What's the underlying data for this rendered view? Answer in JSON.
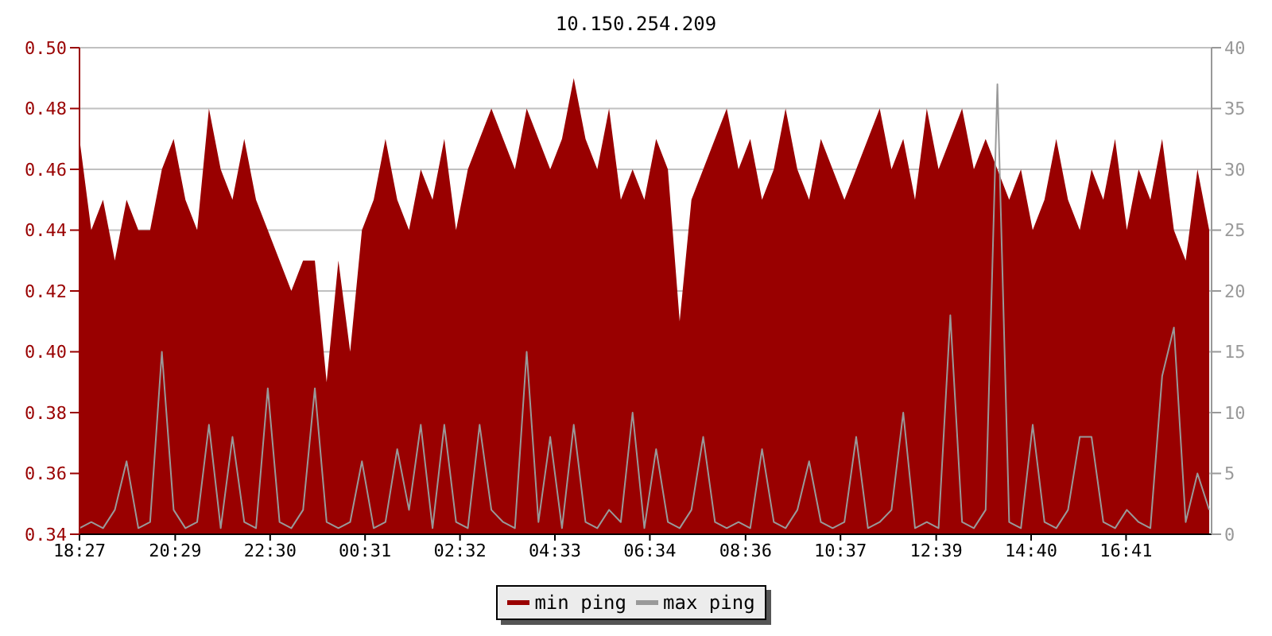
{
  "chart_data": {
    "type": "area",
    "title": "10.150.254.209",
    "x": [
      "--01-01T18:27",
      "--01-01T18:42",
      "--01-01T18:57",
      "--01-01T19:12",
      "--01-01T19:27",
      "--01-01T19:42",
      "--01-01T19:57",
      "--01-01T20:12",
      "--01-01T20:27",
      "--01-01T20:42",
      "--01-01T20:57",
      "--01-01T21:12",
      "--01-01T21:27",
      "--01-01T21:42",
      "--01-01T21:57",
      "--01-01T22:12",
      "--01-01T22:27",
      "--01-01T22:42",
      "--01-01T22:57",
      "--01-01T23:12",
      "--01-01T23:27",
      "--01-01T23:42",
      "--01-01T23:57",
      "--01-02T00:12",
      "--01-02T00:27",
      "--01-02T00:42",
      "--01-02T00:57",
      "--01-02T01:12",
      "--01-02T01:27",
      "--01-02T01:42",
      "--01-02T01:57",
      "--01-02T02:12",
      "--01-02T02:27",
      "--01-02T02:42",
      "--01-02T02:57",
      "--01-02T03:12",
      "--01-02T03:27",
      "--01-02T03:42",
      "--01-02T03:57",
      "--01-02T04:12",
      "--01-02T04:27",
      "--01-02T04:42",
      "--01-02T04:57",
      "--01-02T05:12",
      "--01-02T05:27",
      "--01-02T05:42",
      "--01-02T05:57",
      "--01-02T06:12",
      "--01-02T06:27",
      "--01-02T06:42",
      "--01-02T06:57",
      "--01-02T07:12",
      "--01-02T07:27",
      "--01-02T07:42",
      "--01-02T07:57",
      "--01-02T08:12",
      "--01-02T08:27",
      "--01-02T08:42",
      "--01-02T08:57",
      "--01-02T09:12",
      "--01-02T09:27",
      "--01-02T09:42",
      "--01-02T09:57",
      "--01-02T10:12",
      "--01-02T10:27",
      "--01-02T10:42",
      "--01-02T10:57",
      "--01-02T11:12",
      "--01-02T11:27",
      "--01-02T11:42",
      "--01-02T11:57",
      "--01-02T12:12",
      "--01-02T12:27",
      "--01-02T12:42",
      "--01-02T12:57",
      "--01-02T13:12",
      "--01-02T13:27",
      "--01-02T13:42",
      "--01-02T13:57",
      "--01-02T14:12",
      "--01-02T14:27",
      "--01-02T14:42",
      "--01-02T14:57",
      "--01-02T15:12",
      "--01-02T15:27",
      "--01-02T15:42",
      "--01-02T15:57",
      "--01-02T16:12",
      "--01-02T16:27",
      "--01-02T16:42",
      "--01-02T16:57",
      "--01-02T17:12",
      "--01-02T17:27",
      "--01-02T17:42",
      "--01-02T17:57",
      "--01-02T18:12",
      "--01-02T18:27"
    ],
    "series": [
      {
        "name": "min ping",
        "color": "#990000",
        "values": [
          0.47,
          0.44,
          0.45,
          0.43,
          0.45,
          0.44,
          0.44,
          0.46,
          0.47,
          0.45,
          0.44,
          0.48,
          0.46,
          0.45,
          0.47,
          0.45,
          0.44,
          0.43,
          0.42,
          0.43,
          0.43,
          0.39,
          0.43,
          0.4,
          0.44,
          0.45,
          0.47,
          0.45,
          0.44,
          0.46,
          0.45,
          0.47,
          0.44,
          0.46,
          0.47,
          0.48,
          0.47,
          0.46,
          0.48,
          0.47,
          0.46,
          0.47,
          0.49,
          0.47,
          0.46,
          0.48,
          0.45,
          0.46,
          0.45,
          0.47,
          0.46,
          0.41,
          0.45,
          0.46,
          0.47,
          0.48,
          0.46,
          0.47,
          0.45,
          0.46,
          0.48,
          0.46,
          0.45,
          0.47,
          0.46,
          0.45,
          0.46,
          0.47,
          0.48,
          0.46,
          0.47,
          0.45,
          0.48,
          0.46,
          0.47,
          0.48,
          0.46,
          0.47,
          0.46,
          0.45,
          0.46,
          0.44,
          0.45,
          0.47,
          0.45,
          0.44,
          0.46,
          0.45,
          0.47,
          0.44,
          0.46,
          0.45,
          0.47,
          0.44,
          0.43,
          0.46,
          0.44
        ]
      },
      {
        "name": "max ping",
        "type": "line",
        "axis": "y2",
        "color": "#999999",
        "values": [
          0.5,
          1,
          0.5,
          2,
          6,
          0.5,
          1,
          15,
          2,
          0.5,
          1,
          9,
          0.5,
          8,
          1,
          0.5,
          12,
          1,
          0.5,
          2,
          12,
          1,
          0.5,
          1,
          6,
          0.5,
          1,
          7,
          2,
          9,
          0.5,
          9,
          1,
          0.5,
          9,
          2,
          1,
          0.5,
          15,
          1,
          8,
          0.5,
          9,
          1,
          0.5,
          2,
          1,
          10,
          0.5,
          7,
          1,
          0.5,
          2,
          8,
          1,
          0.5,
          1,
          0.5,
          7,
          1,
          0.5,
          2,
          6,
          1,
          0.5,
          1,
          8,
          0.5,
          1,
          2,
          10,
          0.5,
          1,
          0.5,
          18,
          1,
          0.5,
          2,
          37,
          1,
          0.5,
          9,
          1,
          0.5,
          2,
          8,
          8,
          1,
          0.5,
          2,
          1,
          0.5,
          13,
          17,
          1,
          5,
          2
        ]
      }
    ],
    "xlim": [
      "--01-01T18:27",
      "--01-02T18:30"
    ],
    "xticks": [
      {
        "value": "--01-01T18:27",
        "label": "18:27"
      },
      {
        "value": "--01-01T20:29",
        "label": "20:29"
      },
      {
        "value": "--01-01T22:30",
        "label": "22:30"
      },
      {
        "value": "--01-02T00:31",
        "label": "00:31"
      },
      {
        "value": "--01-02T02:32",
        "label": "02:32"
      },
      {
        "value": "--01-02T04:33",
        "label": "04:33"
      },
      {
        "value": "--01-02T06:34",
        "label": "06:34"
      },
      {
        "value": "--01-02T08:36",
        "label": "08:36"
      },
      {
        "value": "--01-02T10:37",
        "label": "10:37"
      },
      {
        "value": "--01-02T12:39",
        "label": "12:39"
      },
      {
        "value": "--01-02T14:40",
        "label": "14:40"
      },
      {
        "value": "--01-02T16:41",
        "label": "16:41"
      }
    ],
    "ylim": [
      0.34,
      0.5
    ],
    "yticks": [
      {
        "value": 0.34,
        "label": "0.34"
      },
      {
        "value": 0.36,
        "label": "0.36"
      },
      {
        "value": 0.38,
        "label": "0.38"
      },
      {
        "value": 0.4,
        "label": "0.40"
      },
      {
        "value": 0.42,
        "label": "0.42"
      },
      {
        "value": 0.44,
        "label": "0.44"
      },
      {
        "value": 0.46,
        "label": "0.46"
      },
      {
        "value": 0.48,
        "label": "0.48"
      },
      {
        "value": 0.5,
        "label": "0.50"
      }
    ],
    "y2lim": [
      0,
      40
    ],
    "y2ticks": [
      0,
      5,
      10,
      15,
      20,
      25,
      30,
      35,
      40
    ],
    "grid": "y",
    "legend": "bottom"
  }
}
